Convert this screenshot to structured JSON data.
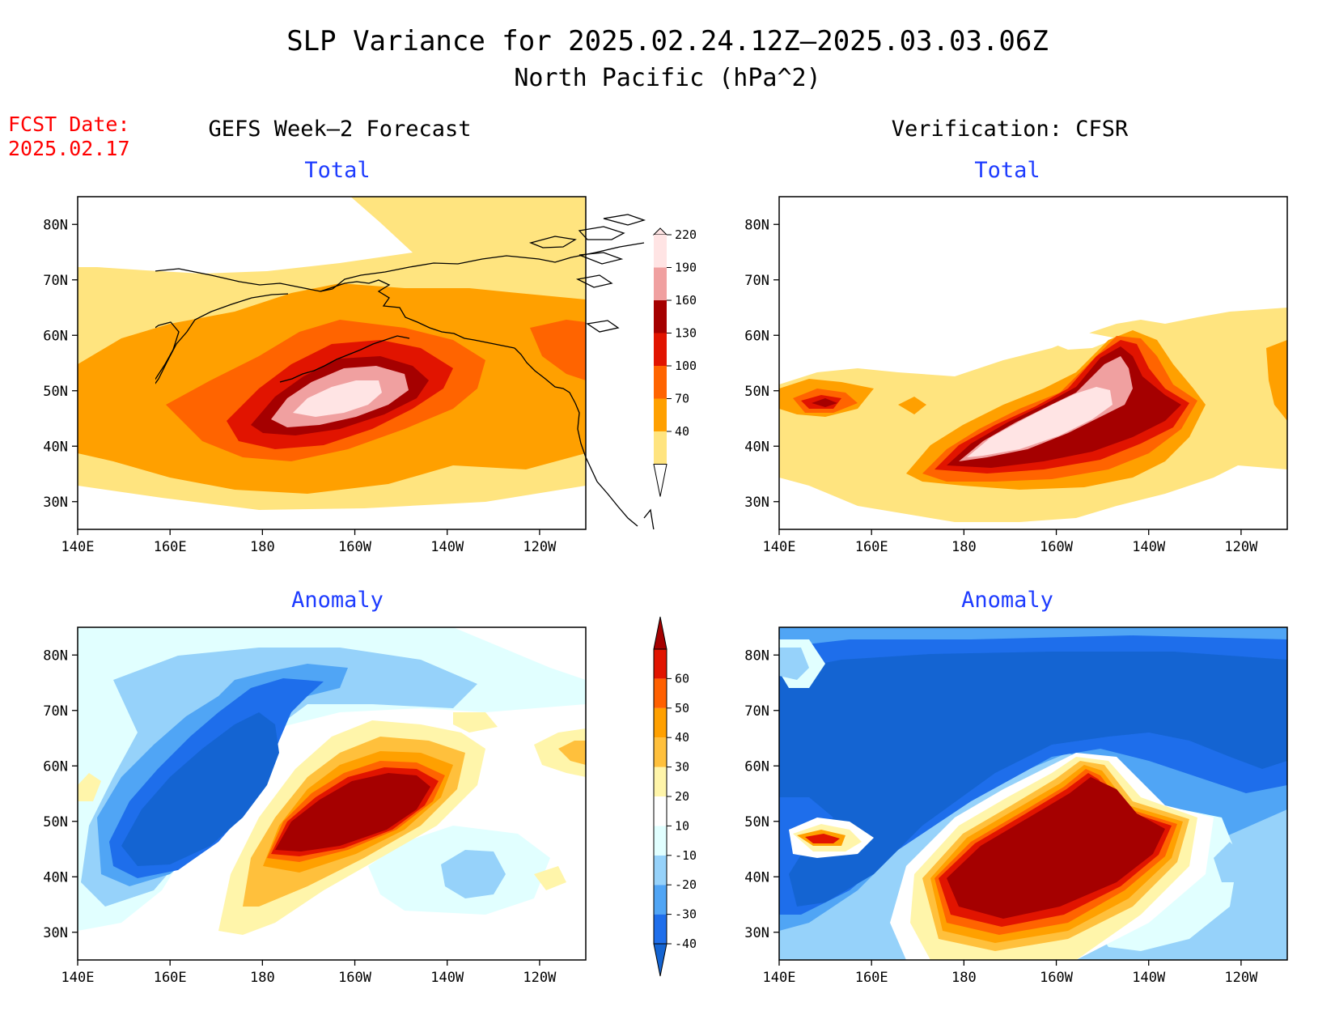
{
  "title_line1": "SLP Variance for 2025.02.24.12Z–2025.03.03.06Z",
  "title_line2": "North Pacific (hPa^2)",
  "fcst_label": "FCST Date:",
  "fcst_date": "2025.02.17",
  "left_header": "GEFS Week–2 Forecast",
  "right_header": "Verification: CFSR",
  "panels": {
    "forecast_total": {
      "subtitle": "Total"
    },
    "cfsr_total": {
      "subtitle": "Total"
    },
    "forecast_anomaly": {
      "subtitle": "Anomaly"
    },
    "cfsr_anomaly": {
      "subtitle": "Anomaly"
    }
  },
  "axes": {
    "lon_ticks": [
      {
        "lon": 140,
        "label": "140E"
      },
      {
        "lon": 160,
        "label": "160E"
      },
      {
        "lon": 180,
        "label": "180"
      },
      {
        "lon": 200,
        "label": "160W"
      },
      {
        "lon": 220,
        "label": "140W"
      },
      {
        "lon": 240,
        "label": "120W"
      }
    ],
    "lat_ticks": [
      {
        "lat": 80,
        "label": "80N"
      },
      {
        "lat": 70,
        "label": "70N"
      },
      {
        "lat": 60,
        "label": "60N"
      },
      {
        "lat": 50,
        "label": "50N"
      },
      {
        "lat": 40,
        "label": "40N"
      },
      {
        "lat": 30,
        "label": "30N"
      }
    ],
    "lon_range": [
      140,
      250
    ],
    "lat_range": [
      25,
      85
    ]
  },
  "colorbars": {
    "total": {
      "labels": [
        "40",
        "70",
        "100",
        "130",
        "160",
        "190",
        "220"
      ],
      "colors": [
        "#ffe47f",
        "#ffa000",
        "#ff6400",
        "#e11400",
        "#a50000",
        "#f0a0a0",
        "#ffe4e4"
      ]
    },
    "anomaly": {
      "labels": [
        "-40",
        "-30",
        "-20",
        "-10",
        "10",
        "20",
        "30",
        "40",
        "50",
        "60"
      ],
      "colors": [
        "#1464d2",
        "#1e6eeb",
        "#50a5f5",
        "#96d2fa",
        "#e1ffff",
        "#ffffff",
        "#fff5aa",
        "#ffc03c",
        "#ffa000",
        "#ff6000",
        "#e11400",
        "#a50000"
      ]
    }
  },
  "colors": {
    "title_red": "#ff0000",
    "subtitle_blue": "#0000ff"
  }
}
